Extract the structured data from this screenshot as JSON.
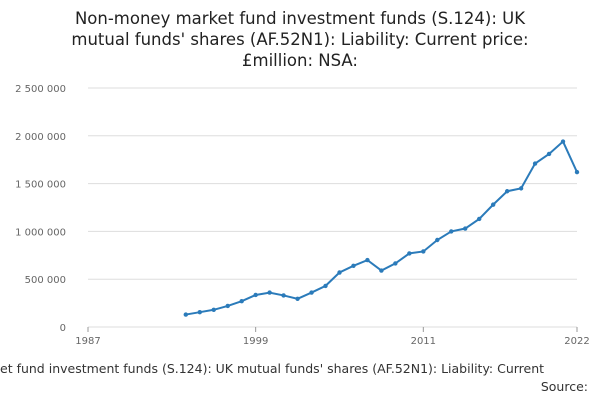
{
  "chart_data": {
    "type": "line",
    "title": [
      "Non-money market fund investment funds (S.124): UK",
      "mutual funds' shares (AF.52N1): Liability: Current price:",
      "£million: NSA:"
    ],
    "x_label": "et fund investment funds (S.124): UK mutual funds' shares (AF.52N1): Liability: Current",
    "source": "Source:",
    "x": [
      1994,
      1995,
      1996,
      1997,
      1998,
      1999,
      2000,
      2001,
      2002,
      2003,
      2004,
      2005,
      2006,
      2007,
      2008,
      2009,
      2010,
      2011,
      2012,
      2013,
      2014,
      2015,
      2016,
      2017,
      2018,
      2019,
      2020,
      2021,
      2022
    ],
    "series": [
      {
        "name": "Liability",
        "color": "#2b7bba",
        "values": [
          130000,
          155000,
          180000,
          220000,
          270000,
          335000,
          360000,
          330000,
          295000,
          360000,
          430000,
          570000,
          640000,
          700000,
          590000,
          665000,
          770000,
          790000,
          910000,
          1000000,
          1030000,
          1130000,
          1280000,
          1420000,
          1450000,
          1710000,
          1810000,
          1940000,
          1620000
        ]
      }
    ],
    "xlim": [
      1987,
      2022
    ],
    "xticks": [
      1987,
      1999,
      2011,
      2022
    ],
    "ylim": [
      0,
      2500000
    ],
    "yticks": [
      0,
      {
        "value": 500000,
        "label": "500 000"
      },
      {
        "value": 1000000,
        "label": "1 000 000"
      },
      {
        "value": 1500000,
        "label": "1 500 000"
      },
      {
        "value": 2000000,
        "label": "2 000 000"
      },
      {
        "value": 2500000,
        "label": "2 500 000"
      }
    ],
    "grid": true
  }
}
